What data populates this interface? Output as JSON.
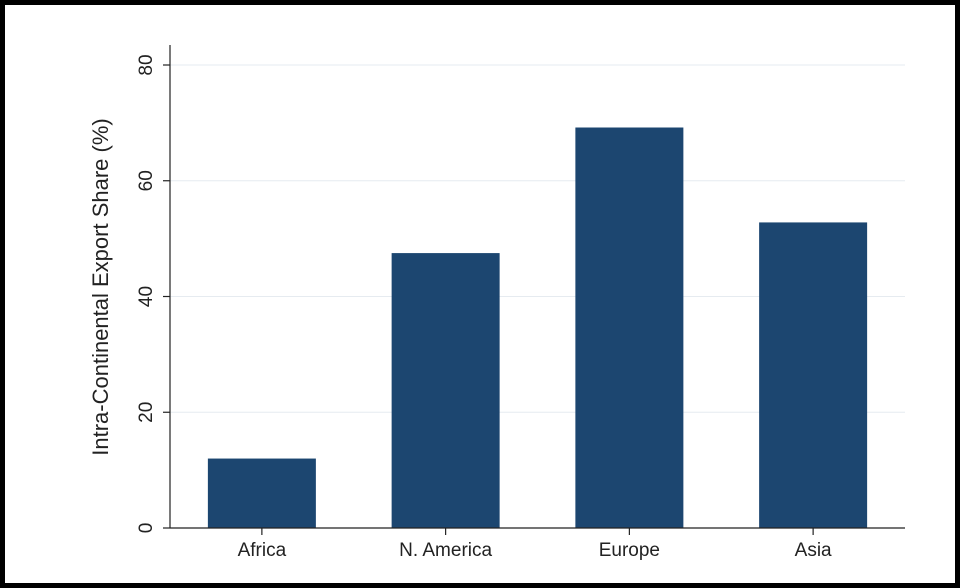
{
  "chart_data": {
    "type": "bar",
    "title": "",
    "xlabel": "",
    "ylabel": "Intra-Continental Export Share (%)",
    "categories": [
      "Africa",
      "N. America",
      "Europe",
      "Asia"
    ],
    "values": [
      12,
      47.5,
      69.2,
      52.8
    ],
    "ylim": [
      0,
      80
    ],
    "yticks": [
      "0",
      "20",
      "40",
      "60",
      "80"
    ],
    "grid": true,
    "legend": "none",
    "bar_color": "#1c4670",
    "grid_color": "#e6ebf0",
    "axis_color": "#222222"
  }
}
